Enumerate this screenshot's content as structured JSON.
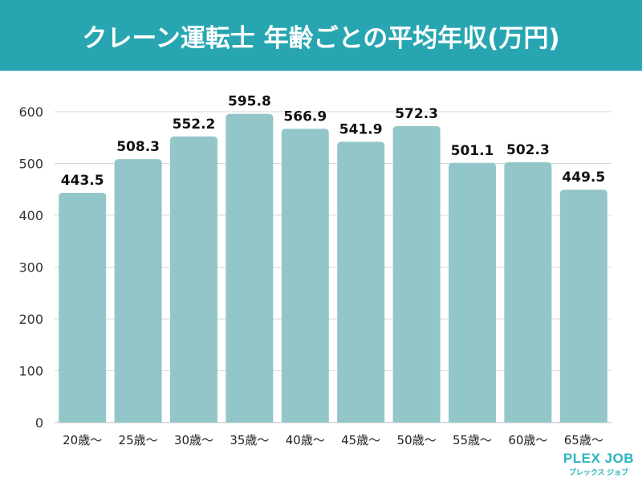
{
  "chart_data": {
    "type": "bar",
    "title": "クレーン運転士 年齢ごとの平均年収(万円)",
    "categories": [
      "20歳〜",
      "25歳〜",
      "30歳〜",
      "35歳〜",
      "40歳〜",
      "45歳〜",
      "50歳〜",
      "55歳〜",
      "60歳〜",
      "65歳〜"
    ],
    "values": [
      443.5,
      508.3,
      552.2,
      595.8,
      566.9,
      541.9,
      572.3,
      501.1,
      502.3,
      449.5
    ],
    "ylim": [
      0,
      600
    ],
    "yticks": [
      0,
      100,
      200,
      300,
      400,
      500,
      600
    ],
    "grid": true,
    "colors": {
      "bar": "#93c6c9",
      "header": "#27a6b1",
      "grid": "#d9d9d9"
    }
  },
  "logo": {
    "main": "PLEX JOB",
    "sub": "プレックス ジョブ"
  }
}
